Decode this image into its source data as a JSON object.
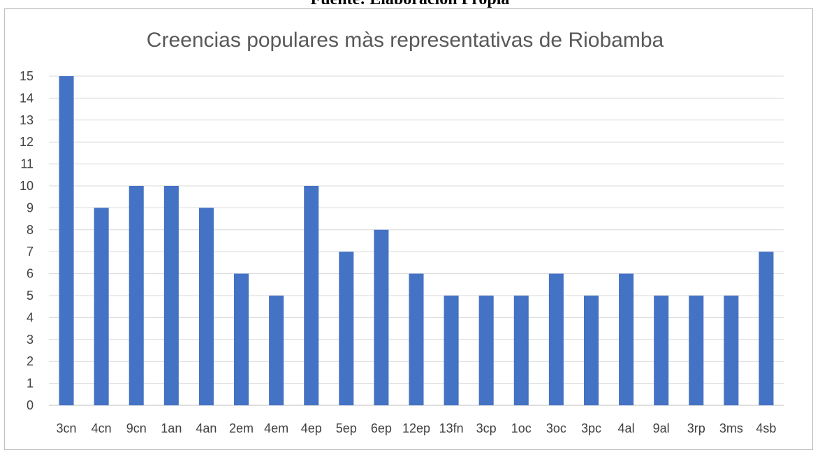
{
  "caption": "Fuente: Elaboración Propia",
  "chart_data": {
    "type": "bar",
    "title": "Creencias populares màs representativas de Riobamba",
    "xlabel": "",
    "ylabel": "",
    "categories": [
      "3cn",
      "4cn",
      "9cn",
      "1an",
      "4an",
      "2em",
      "4em",
      "4ep",
      "5ep",
      "6ep",
      "12ep",
      "13fn",
      "3cp",
      "1oc",
      "3oc",
      "3pc",
      "4al",
      "9al",
      "3rp",
      "3ms",
      "4sb"
    ],
    "values": [
      15,
      9,
      10,
      10,
      9,
      6,
      5,
      10,
      7,
      8,
      6,
      5,
      5,
      5,
      6,
      5,
      6,
      5,
      5,
      5,
      7
    ],
    "ylim": [
      0,
      15
    ],
    "yticks": [
      0,
      1,
      2,
      3,
      4,
      5,
      6,
      7,
      8,
      9,
      10,
      11,
      12,
      13,
      14,
      15
    ],
    "grid": true,
    "legend": "none",
    "bar_color": "#4472C4"
  }
}
